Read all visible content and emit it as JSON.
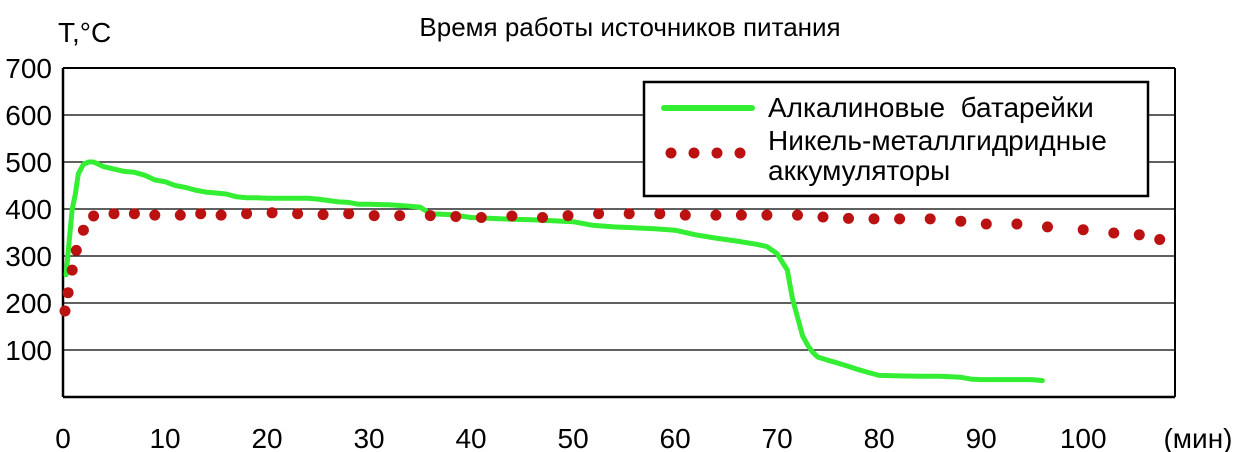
{
  "chart_data": {
    "type": "line",
    "title": "Время работы источников питания",
    "ylabel": "T,°C",
    "xlabel": "(мин)",
    "xlim": [
      0,
      109
    ],
    "ylim": [
      0,
      700
    ],
    "xticks": [
      0,
      10,
      20,
      30,
      40,
      50,
      60,
      70,
      80,
      90,
      100
    ],
    "xtick_labels": [
      "0",
      "10",
      "20",
      "30",
      "40",
      "50",
      "60",
      "70",
      "80",
      "90",
      "100"
    ],
    "yticks": [
      100,
      200,
      300,
      400,
      500,
      600,
      700
    ],
    "ytick_labels": [
      "100",
      "200",
      "300",
      "400",
      "500",
      "600",
      "700"
    ],
    "grid": "horizontal",
    "legend_position": "top-right",
    "series": [
      {
        "name": "Алкалиновые  батарейки",
        "style": "solid",
        "color": "#33ee33",
        "points": [
          [
            0.3,
            260
          ],
          [
            0.6,
            330
          ],
          [
            0.9,
            400
          ],
          [
            1.2,
            430
          ],
          [
            1.5,
            475
          ],
          [
            2,
            495
          ],
          [
            2.5,
            500
          ],
          [
            3,
            500
          ],
          [
            3.5,
            495
          ],
          [
            4,
            490
          ],
          [
            5,
            485
          ],
          [
            6,
            480
          ],
          [
            7,
            478
          ],
          [
            8,
            472
          ],
          [
            9,
            462
          ],
          [
            10,
            458
          ],
          [
            11,
            450
          ],
          [
            12,
            446
          ],
          [
            13,
            440
          ],
          [
            14,
            436
          ],
          [
            15,
            434
          ],
          [
            16,
            432
          ],
          [
            17,
            426
          ],
          [
            18,
            424
          ],
          [
            19,
            424
          ],
          [
            20,
            423
          ],
          [
            22,
            423
          ],
          [
            24,
            423
          ],
          [
            25,
            421
          ],
          [
            26,
            418
          ],
          [
            27,
            415
          ],
          [
            28,
            414
          ],
          [
            29,
            410
          ],
          [
            30,
            410
          ],
          [
            32,
            409
          ],
          [
            34,
            406
          ],
          [
            35,
            404
          ],
          [
            36,
            390
          ],
          [
            38,
            388
          ],
          [
            40,
            382
          ],
          [
            42,
            380
          ],
          [
            44,
            378
          ],
          [
            46,
            377
          ],
          [
            48,
            375
          ],
          [
            50,
            373
          ],
          [
            52,
            365
          ],
          [
            54,
            362
          ],
          [
            56,
            360
          ],
          [
            58,
            358
          ],
          [
            60,
            355
          ],
          [
            62,
            345
          ],
          [
            64,
            338
          ],
          [
            66,
            332
          ],
          [
            68,
            325
          ],
          [
            69,
            320
          ],
          [
            70,
            305
          ],
          [
            71,
            270
          ],
          [
            71.5,
            210
          ],
          [
            72,
            170
          ],
          [
            72.5,
            130
          ],
          [
            73,
            110
          ],
          [
            73.5,
            95
          ],
          [
            74,
            85
          ],
          [
            75,
            78
          ],
          [
            76,
            72
          ],
          [
            77,
            65
          ],
          [
            78,
            58
          ],
          [
            79,
            52
          ],
          [
            80,
            46
          ],
          [
            82,
            45
          ],
          [
            84,
            44
          ],
          [
            86,
            44
          ],
          [
            88,
            42
          ],
          [
            89,
            38
          ],
          [
            90,
            37
          ],
          [
            92,
            37
          ],
          [
            94,
            37
          ],
          [
            95,
            37
          ],
          [
            96,
            35
          ]
        ]
      },
      {
        "name": "Никель-металлгидридные аккумуляторы",
        "name_lines": [
          "Никель-металлгидридные",
          "аккумуляторы"
        ],
        "style": "dotted",
        "color": "#bb1111",
        "points": [
          [
            0.2,
            183
          ],
          [
            0.5,
            222
          ],
          [
            0.9,
            270
          ],
          [
            1.3,
            312
          ],
          [
            2,
            355
          ],
          [
            3,
            385
          ],
          [
            5,
            390
          ],
          [
            7,
            390
          ],
          [
            9,
            387
          ],
          [
            11.5,
            387
          ],
          [
            13.5,
            390
          ],
          [
            15.5,
            387
          ],
          [
            18,
            390
          ],
          [
            20.5,
            392
          ],
          [
            23,
            390
          ],
          [
            25.5,
            388
          ],
          [
            28,
            390
          ],
          [
            30.5,
            386
          ],
          [
            33,
            386
          ],
          [
            36,
            386
          ],
          [
            38.5,
            384
          ],
          [
            41,
            382
          ],
          [
            44,
            385
          ],
          [
            47,
            382
          ],
          [
            49.5,
            386
          ],
          [
            52.5,
            390
          ],
          [
            55.5,
            390
          ],
          [
            58.5,
            390
          ],
          [
            61,
            387
          ],
          [
            64,
            387
          ],
          [
            66.5,
            387
          ],
          [
            69,
            387
          ],
          [
            72,
            387
          ],
          [
            74.5,
            383
          ],
          [
            77,
            380
          ],
          [
            79.5,
            379
          ],
          [
            82,
            379
          ],
          [
            85,
            379
          ],
          [
            88,
            374
          ],
          [
            90.5,
            368
          ],
          [
            93.5,
            368
          ],
          [
            96.5,
            362
          ],
          [
            100,
            356
          ],
          [
            103,
            349
          ],
          [
            105.5,
            345
          ],
          [
            107.5,
            335
          ]
        ]
      }
    ]
  }
}
